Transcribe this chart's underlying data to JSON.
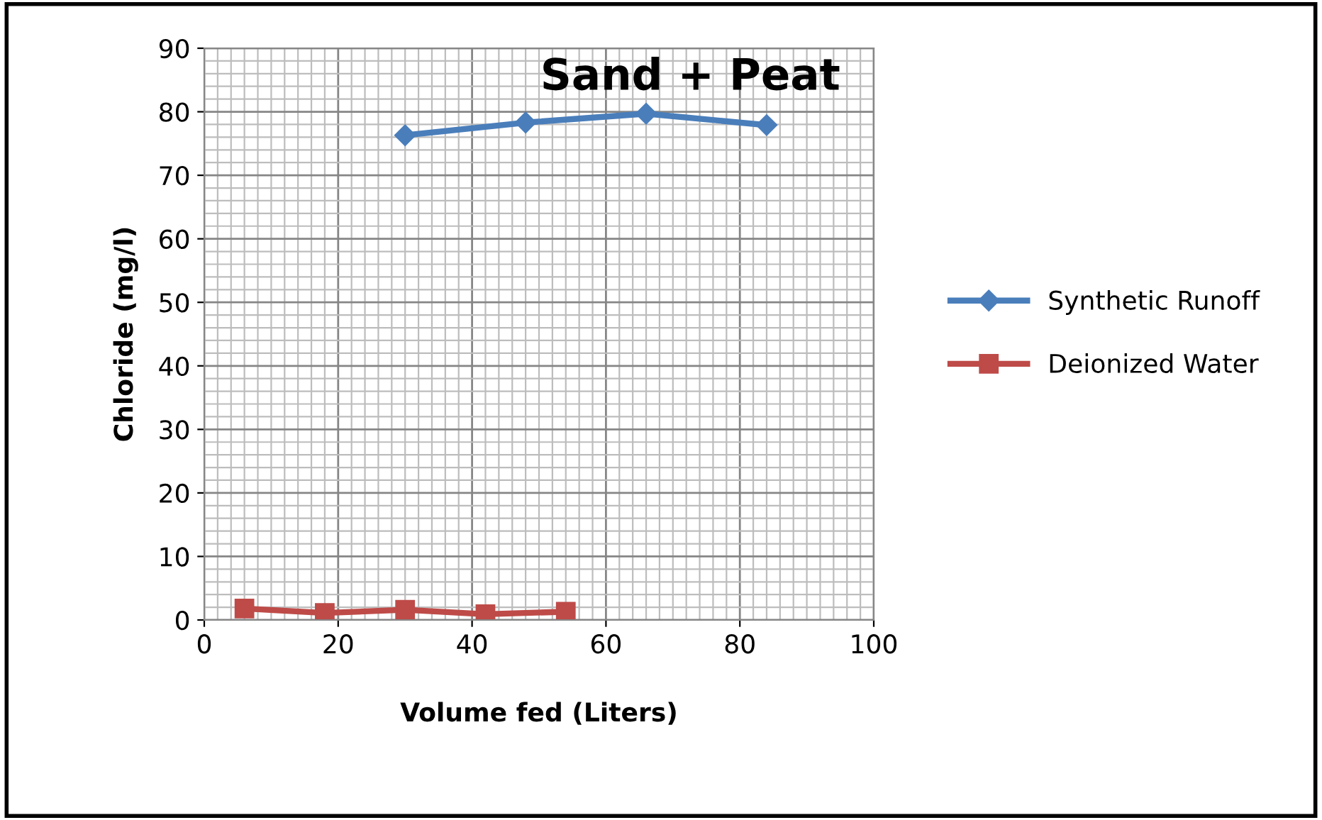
{
  "chart_data": {
    "type": "line",
    "title": "Sand + Peat",
    "xlabel": "Volume fed (Liters)",
    "ylabel": "Chloride (mg/l)",
    "xlim": [
      0,
      100
    ],
    "xticks": [
      0,
      20,
      40,
      60,
      80,
      100
    ],
    "ylim": [
      0,
      90
    ],
    "yticks": [
      0,
      10,
      20,
      30,
      40,
      50,
      60,
      70,
      80,
      90
    ],
    "grid": true,
    "legend": "right",
    "series": [
      {
        "name": "Synthetic Runoff",
        "color": "#4a7ebb",
        "marker": "diamond",
        "x": [
          30,
          48,
          66,
          84
        ],
        "values": [
          76.3,
          78.3,
          79.7,
          77.9
        ]
      },
      {
        "name": "Deionized Water",
        "color": "#be4b48",
        "marker": "square",
        "x": [
          6,
          18,
          30,
          42,
          54
        ],
        "values": [
          1.8,
          1.1,
          1.6,
          0.9,
          1.3
        ]
      }
    ]
  }
}
